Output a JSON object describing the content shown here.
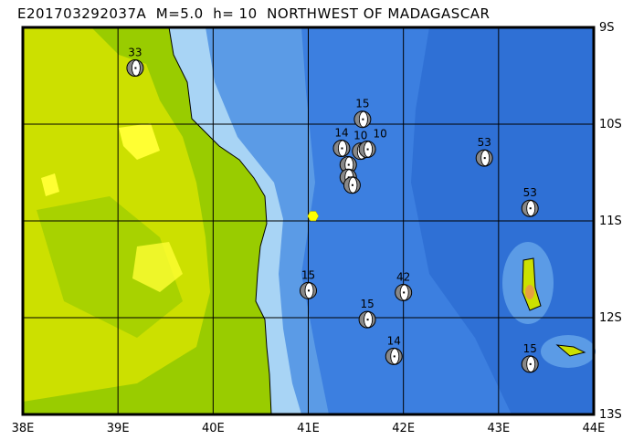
{
  "title": "E201703292037A  M=5.0  h= 10  NORTHWEST OF MADAGASCAR",
  "map": {
    "lon_range": [
      38,
      44
    ],
    "lat_range": [
      -13,
      -9
    ],
    "grid": true,
    "lon_ticks": [
      "38E",
      "39E",
      "40E",
      "41E",
      "42E",
      "43E",
      "44E"
    ],
    "lat_ticks": [
      "9S",
      "10S",
      "11S",
      "12S",
      "13S"
    ],
    "colors": {
      "land_low": "#99cc00",
      "land_mid": "#cce000",
      "land_high": "#ffff33",
      "shelf": "#a8d4f5",
      "slope": "#5b9be6",
      "deep": "#3c7fe0",
      "abyss": "#2f70d5",
      "epicenter": "#ffff00"
    },
    "epicenter": {
      "lon": 41.05,
      "lat": -10.95,
      "icon": "hexagon-icon"
    },
    "events": [
      {
        "lon": 39.18,
        "lat": -9.42,
        "depth": "33"
      },
      {
        "lon": 41.57,
        "lat": -9.95,
        "depth": "15"
      },
      {
        "lon": 41.35,
        "lat": -10.25,
        "depth": "14"
      },
      {
        "lon": 41.55,
        "lat": -10.28,
        "depth": "10"
      },
      {
        "lon": 41.62,
        "lat": -10.26,
        "depth": "10"
      },
      {
        "lon": 41.42,
        "lat": -10.42,
        "depth": ""
      },
      {
        "lon": 41.42,
        "lat": -10.55,
        "depth": ""
      },
      {
        "lon": 41.46,
        "lat": -10.63,
        "depth": ""
      },
      {
        "lon": 42.85,
        "lat": -10.35,
        "depth": "53"
      },
      {
        "lon": 43.33,
        "lat": -10.87,
        "depth": "53"
      },
      {
        "lon": 41.0,
        "lat": -11.72,
        "depth": "15"
      },
      {
        "lon": 42.0,
        "lat": -11.74,
        "depth": "42"
      },
      {
        "lon": 41.62,
        "lat": -12.02,
        "depth": "15"
      },
      {
        "lon": 41.9,
        "lat": -12.4,
        "depth": "14"
      },
      {
        "lon": 43.33,
        "lat": -12.48,
        "depth": "15"
      }
    ]
  }
}
